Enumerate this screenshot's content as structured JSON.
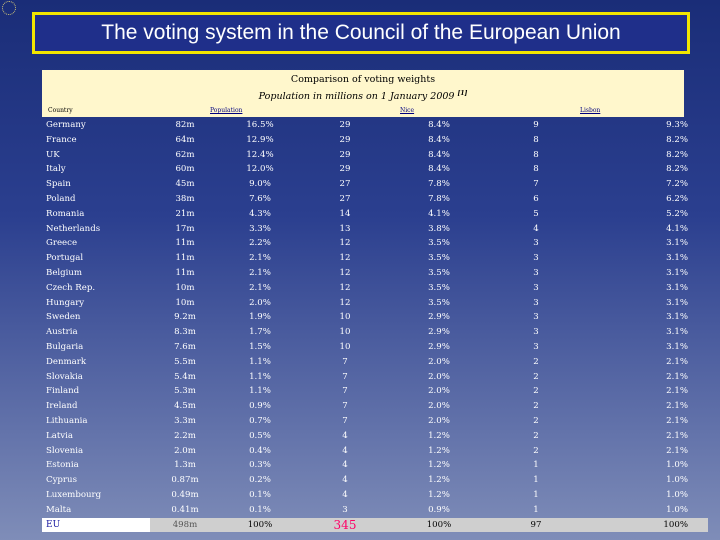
{
  "title": "The voting system in the Council of the European Union",
  "caption": {
    "line1": "Comparison of voting weights",
    "line2": "Population in millions on 1 January 2009",
    "footnote_marker": "[1]"
  },
  "headers": {
    "country": "Country",
    "population": "Population",
    "nice": "Nice",
    "lisbon": "Lisbon"
  },
  "rows": [
    {
      "country": "Germany",
      "pop": "82m",
      "pop_pct": "16.5%",
      "nice": "29",
      "nice_pct": "8.4%",
      "lisbon": "9",
      "lisbon_pct": "9.3%"
    },
    {
      "country": "France",
      "pop": "64m",
      "pop_pct": "12.9%",
      "nice": "29",
      "nice_pct": "8.4%",
      "lisbon": "8",
      "lisbon_pct": "8.2%"
    },
    {
      "country": "UK",
      "pop": "62m",
      "pop_pct": "12.4%",
      "nice": "29",
      "nice_pct": "8.4%",
      "lisbon": "8",
      "lisbon_pct": "8.2%"
    },
    {
      "country": "Italy",
      "pop": "60m",
      "pop_pct": "12.0%",
      "nice": "29",
      "nice_pct": "8.4%",
      "lisbon": "8",
      "lisbon_pct": "8.2%"
    },
    {
      "country": "Spain",
      "pop": "45m",
      "pop_pct": "9.0%",
      "nice": "27",
      "nice_pct": "7.8%",
      "lisbon": "7",
      "lisbon_pct": "7.2%"
    },
    {
      "country": "Poland",
      "pop": "38m",
      "pop_pct": "7.6%",
      "nice": "27",
      "nice_pct": "7.8%",
      "lisbon": "6",
      "lisbon_pct": "6.2%"
    },
    {
      "country": "Romania",
      "pop": "21m",
      "pop_pct": "4.3%",
      "nice": "14",
      "nice_pct": "4.1%",
      "lisbon": "5",
      "lisbon_pct": "5.2%"
    },
    {
      "country": "Netherlands",
      "pop": "17m",
      "pop_pct": "3.3%",
      "nice": "13",
      "nice_pct": "3.8%",
      "lisbon": "4",
      "lisbon_pct": "4.1%"
    },
    {
      "country": "Greece",
      "pop": "11m",
      "pop_pct": "2.2%",
      "nice": "12",
      "nice_pct": "3.5%",
      "lisbon": "3",
      "lisbon_pct": "3.1%"
    },
    {
      "country": "Portugal",
      "pop": "11m",
      "pop_pct": "2.1%",
      "nice": "12",
      "nice_pct": "3.5%",
      "lisbon": "3",
      "lisbon_pct": "3.1%"
    },
    {
      "country": "Belgium",
      "pop": "11m",
      "pop_pct": "2.1%",
      "nice": "12",
      "nice_pct": "3.5%",
      "lisbon": "3",
      "lisbon_pct": "3.1%"
    },
    {
      "country": "Czech Rep.",
      "pop": "10m",
      "pop_pct": "2.1%",
      "nice": "12",
      "nice_pct": "3.5%",
      "lisbon": "3",
      "lisbon_pct": "3.1%"
    },
    {
      "country": "Hungary",
      "pop": "10m",
      "pop_pct": "2.0%",
      "nice": "12",
      "nice_pct": "3.5%",
      "lisbon": "3",
      "lisbon_pct": "3.1%"
    },
    {
      "country": "Sweden",
      "pop": "9.2m",
      "pop_pct": "1.9%",
      "nice": "10",
      "nice_pct": "2.9%",
      "lisbon": "3",
      "lisbon_pct": "3.1%"
    },
    {
      "country": "Austria",
      "pop": "8.3m",
      "pop_pct": "1.7%",
      "nice": "10",
      "nice_pct": "2.9%",
      "lisbon": "3",
      "lisbon_pct": "3.1%"
    },
    {
      "country": "Bulgaria",
      "pop": "7.6m",
      "pop_pct": "1.5%",
      "nice": "10",
      "nice_pct": "2.9%",
      "lisbon": "3",
      "lisbon_pct": "3.1%"
    },
    {
      "country": "Denmark",
      "pop": "5.5m",
      "pop_pct": "1.1%",
      "nice": "7",
      "nice_pct": "2.0%",
      "lisbon": "2",
      "lisbon_pct": "2.1%"
    },
    {
      "country": "Slovakia",
      "pop": "5.4m",
      "pop_pct": "1.1%",
      "nice": "7",
      "nice_pct": "2.0%",
      "lisbon": "2",
      "lisbon_pct": "2.1%"
    },
    {
      "country": "Finland",
      "pop": "5.3m",
      "pop_pct": "1.1%",
      "nice": "7",
      "nice_pct": "2.0%",
      "lisbon": "2",
      "lisbon_pct": "2.1%"
    },
    {
      "country": "Ireland",
      "pop": "4.5m",
      "pop_pct": "0.9%",
      "nice": "7",
      "nice_pct": "2.0%",
      "lisbon": "2",
      "lisbon_pct": "2.1%"
    },
    {
      "country": "Lithuania",
      "pop": "3.3m",
      "pop_pct": "0.7%",
      "nice": "7",
      "nice_pct": "2.0%",
      "lisbon": "2",
      "lisbon_pct": "2.1%"
    },
    {
      "country": "Latvia",
      "pop": "2.2m",
      "pop_pct": "0.5%",
      "nice": "4",
      "nice_pct": "1.2%",
      "lisbon": "2",
      "lisbon_pct": "2.1%"
    },
    {
      "country": "Slovenia",
      "pop": "2.0m",
      "pop_pct": "0.4%",
      "nice": "4",
      "nice_pct": "1.2%",
      "lisbon": "2",
      "lisbon_pct": "2.1%"
    },
    {
      "country": "Estonia",
      "pop": "1.3m",
      "pop_pct": "0.3%",
      "nice": "4",
      "nice_pct": "1.2%",
      "lisbon": "1",
      "lisbon_pct": "1.0%"
    },
    {
      "country": "Cyprus",
      "pop": "0.87m",
      "pop_pct": "0.2%",
      "nice": "4",
      "nice_pct": "1.2%",
      "lisbon": "1",
      "lisbon_pct": "1.0%"
    },
    {
      "country": "Luxembourg",
      "pop": "0.49m",
      "pop_pct": "0.1%",
      "nice": "4",
      "nice_pct": "1.2%",
      "lisbon": "1",
      "lisbon_pct": "1.0%"
    },
    {
      "country": "Malta",
      "pop": "0.41m",
      "pop_pct": "0.1%",
      "nice": "3",
      "nice_pct": "0.9%",
      "lisbon": "1",
      "lisbon_pct": "1.0%"
    }
  ],
  "total": {
    "country": "EU",
    "pop": "498m",
    "pop_pct": "100%",
    "nice": "345",
    "nice_pct": "100%",
    "lisbon": "97",
    "lisbon_pct": "100%"
  },
  "colors": {
    "title_border": "#f2e600",
    "caption_bg": "#fff7cc",
    "total_nice": "#ff0066"
  }
}
